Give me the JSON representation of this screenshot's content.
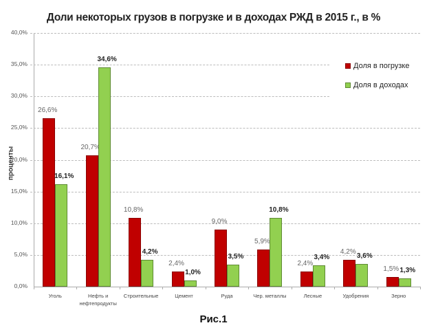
{
  "chart_data": {
    "type": "bar",
    "title": "Доли некоторых грузов в погрузке и в доходах РЖД в 2015 г., в %",
    "xlabel": "",
    "ylabel": "проценты",
    "ylim": [
      0,
      40
    ],
    "yticks": [
      "0,0%",
      "5,0%",
      "10,0%",
      "15,0%",
      "20,0%",
      "25,0%",
      "30,0%",
      "35,0%",
      "40,0%"
    ],
    "grid": true,
    "legend_position": "right",
    "categories": [
      "Уголь",
      "Нефть и нефтепродукты",
      "Строительные",
      "Цемент",
      "Руда",
      "Чер. металлы",
      "Лесные",
      "Удобрения",
      "Зерно"
    ],
    "category_lines": [
      [
        "Уголь"
      ],
      [
        "Нефть и",
        "нефтепродукты"
      ],
      [
        "Строительные"
      ],
      [
        "Цемент"
      ],
      [
        "Руда"
      ],
      [
        "Чер. металлы"
      ],
      [
        "Лесные"
      ],
      [
        "Удобрения"
      ],
      [
        "Зерно"
      ]
    ],
    "series": [
      {
        "name": "Доля в погрузке",
        "color": "#c00000",
        "values": [
          26.6,
          20.7,
          10.8,
          2.4,
          9.0,
          5.9,
          2.4,
          4.2,
          1.5
        ],
        "labels": [
          "26,6%",
          "20,7%",
          "10,8%",
          "2,4%",
          "9,0%",
          "5,9%",
          "2,4%",
          "4,2%",
          "1,5%"
        ]
      },
      {
        "name": "Доля в доходах",
        "color": "#92d050",
        "values": [
          16.1,
          34.6,
          4.2,
          1.0,
          3.5,
          10.8,
          3.4,
          3.6,
          1.3
        ],
        "labels": [
          "16,1%",
          "34,6%",
          "4,2%",
          "1,0%",
          "3,5%",
          "10,8%",
          "3,4%",
          "3,6%",
          "1,3%"
        ]
      }
    ]
  },
  "caption": "Рис.1"
}
